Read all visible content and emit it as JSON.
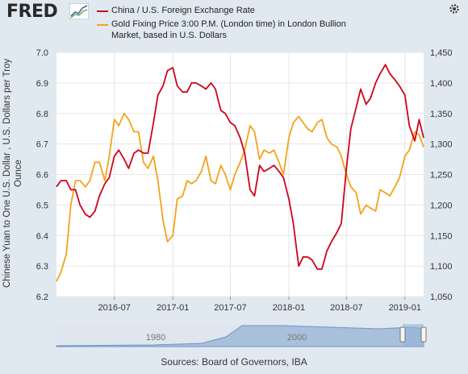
{
  "header": {
    "logo_text": "FRED",
    "logo_icon": "line-graph-icon",
    "settings_icon": "gear-icon"
  },
  "legend": [
    {
      "label": "China / U.S. Foreign Exchange Rate",
      "color": "#d0021b"
    },
    {
      "label_lines": [
        "Gold Fixing Price 3:00 P.M. (London time) in London Bullion",
        "Market, based in U.S. Dollars"
      ],
      "color": "#f5a21b"
    }
  ],
  "chart_data": {
    "type": "line",
    "x_tick_labels": [
      "2016-07",
      "2017-01",
      "2017-07",
      "2018-01",
      "2018-07",
      "2019-01"
    ],
    "left_axis": {
      "label": "Chinese Yuan to One U.S. Dollar , U.S. Dollars per Troy Ounce",
      "ticks": [
        "6.2",
        "6.3",
        "6.4",
        "6.5",
        "6.6",
        "6.7",
        "6.8",
        "6.9",
        "7.0"
      ],
      "ylim": [
        6.2,
        7.0
      ]
    },
    "right_axis": {
      "ticks": [
        "1,050",
        "1,100",
        "1,150",
        "1,200",
        "1,250",
        "1,300",
        "1,350",
        "1,400",
        "1,450"
      ],
      "ylim": [
        1050,
        1450
      ]
    },
    "xlim": [
      "2016-01-01",
      "2019-03-01"
    ],
    "grid": true,
    "series": [
      {
        "name": "China / U.S. Foreign Exchange Rate",
        "axis": "left",
        "color": "#d0021b",
        "points": [
          [
            "2016-01-01",
            6.56
          ],
          [
            "2016-01-15",
            6.58
          ],
          [
            "2016-02-01",
            6.58
          ],
          [
            "2016-02-15",
            6.55
          ],
          [
            "2016-03-01",
            6.55
          ],
          [
            "2016-03-15",
            6.5
          ],
          [
            "2016-04-01",
            6.47
          ],
          [
            "2016-04-15",
            6.46
          ],
          [
            "2016-05-01",
            6.48
          ],
          [
            "2016-05-15",
            6.53
          ],
          [
            "2016-06-01",
            6.57
          ],
          [
            "2016-06-15",
            6.59
          ],
          [
            "2016-07-01",
            6.66
          ],
          [
            "2016-07-15",
            6.68
          ],
          [
            "2016-08-01",
            6.65
          ],
          [
            "2016-08-15",
            6.62
          ],
          [
            "2016-09-01",
            6.67
          ],
          [
            "2016-09-15",
            6.68
          ],
          [
            "2016-10-01",
            6.67
          ],
          [
            "2016-10-15",
            6.67
          ],
          [
            "2016-11-01",
            6.77
          ],
          [
            "2016-11-15",
            6.86
          ],
          [
            "2016-12-01",
            6.89
          ],
          [
            "2016-12-15",
            6.94
          ],
          [
            "2017-01-01",
            6.95
          ],
          [
            "2017-01-15",
            6.89
          ],
          [
            "2017-02-01",
            6.87
          ],
          [
            "2017-02-15",
            6.87
          ],
          [
            "2017-03-01",
            6.9
          ],
          [
            "2017-03-15",
            6.9
          ],
          [
            "2017-04-01",
            6.89
          ],
          [
            "2017-04-15",
            6.88
          ],
          [
            "2017-05-01",
            6.9
          ],
          [
            "2017-05-15",
            6.88
          ],
          [
            "2017-06-01",
            6.81
          ],
          [
            "2017-06-15",
            6.8
          ],
          [
            "2017-07-01",
            6.77
          ],
          [
            "2017-07-15",
            6.76
          ],
          [
            "2017-08-01",
            6.72
          ],
          [
            "2017-08-15",
            6.67
          ],
          [
            "2017-09-01",
            6.55
          ],
          [
            "2017-09-15",
            6.53
          ],
          [
            "2017-10-01",
            6.63
          ],
          [
            "2017-10-15",
            6.61
          ],
          [
            "2017-11-01",
            6.62
          ],
          [
            "2017-11-15",
            6.63
          ],
          [
            "2017-12-01",
            6.61
          ],
          [
            "2017-12-15",
            6.59
          ],
          [
            "2018-01-01",
            6.52
          ],
          [
            "2018-01-15",
            6.44
          ],
          [
            "2018-02-01",
            6.3
          ],
          [
            "2018-02-15",
            6.33
          ],
          [
            "2018-03-01",
            6.33
          ],
          [
            "2018-03-15",
            6.32
          ],
          [
            "2018-04-01",
            6.29
          ],
          [
            "2018-04-15",
            6.29
          ],
          [
            "2018-05-01",
            6.35
          ],
          [
            "2018-05-15",
            6.38
          ],
          [
            "2018-06-01",
            6.41
          ],
          [
            "2018-06-15",
            6.44
          ],
          [
            "2018-07-01",
            6.62
          ],
          [
            "2018-07-15",
            6.75
          ],
          [
            "2018-08-01",
            6.82
          ],
          [
            "2018-08-15",
            6.88
          ],
          [
            "2018-09-01",
            6.83
          ],
          [
            "2018-09-15",
            6.85
          ],
          [
            "2018-10-01",
            6.9
          ],
          [
            "2018-10-15",
            6.93
          ],
          [
            "2018-11-01",
            6.96
          ],
          [
            "2018-11-15",
            6.93
          ],
          [
            "2018-12-01",
            6.91
          ],
          [
            "2018-12-15",
            6.89
          ],
          [
            "2019-01-01",
            6.86
          ],
          [
            "2019-01-15",
            6.76
          ],
          [
            "2019-02-01",
            6.71
          ],
          [
            "2019-02-15",
            6.78
          ],
          [
            "2019-03-01",
            6.72
          ]
        ]
      },
      {
        "name": "Gold Fixing Price 3:00 P.M. (London time) in London Bullion Market, based in U.S. Dollars",
        "axis": "right",
        "color": "#f5a21b",
        "points": [
          [
            "2016-01-01",
            1075
          ],
          [
            "2016-01-15",
            1090
          ],
          [
            "2016-02-01",
            1120
          ],
          [
            "2016-02-15",
            1200
          ],
          [
            "2016-03-01",
            1240
          ],
          [
            "2016-03-15",
            1240
          ],
          [
            "2016-04-01",
            1230
          ],
          [
            "2016-04-15",
            1240
          ],
          [
            "2016-05-01",
            1270
          ],
          [
            "2016-05-15",
            1270
          ],
          [
            "2016-06-01",
            1240
          ],
          [
            "2016-06-15",
            1280
          ],
          [
            "2016-07-01",
            1340
          ],
          [
            "2016-07-15",
            1330
          ],
          [
            "2016-08-01",
            1350
          ],
          [
            "2016-08-15",
            1340
          ],
          [
            "2016-09-01",
            1320
          ],
          [
            "2016-09-15",
            1320
          ],
          [
            "2016-10-01",
            1270
          ],
          [
            "2016-10-15",
            1260
          ],
          [
            "2016-11-01",
            1280
          ],
          [
            "2016-11-15",
            1240
          ],
          [
            "2016-12-01",
            1175
          ],
          [
            "2016-12-15",
            1140
          ],
          [
            "2017-01-01",
            1150
          ],
          [
            "2017-01-15",
            1210
          ],
          [
            "2017-02-01",
            1215
          ],
          [
            "2017-02-15",
            1240
          ],
          [
            "2017-03-01",
            1235
          ],
          [
            "2017-03-15",
            1240
          ],
          [
            "2017-04-01",
            1255
          ],
          [
            "2017-04-15",
            1280
          ],
          [
            "2017-05-01",
            1240
          ],
          [
            "2017-05-15",
            1235
          ],
          [
            "2017-06-01",
            1265
          ],
          [
            "2017-06-15",
            1250
          ],
          [
            "2017-07-01",
            1225
          ],
          [
            "2017-07-15",
            1250
          ],
          [
            "2017-08-01",
            1270
          ],
          [
            "2017-08-15",
            1290
          ],
          [
            "2017-09-01",
            1330
          ],
          [
            "2017-09-15",
            1320
          ],
          [
            "2017-10-01",
            1275
          ],
          [
            "2017-10-15",
            1290
          ],
          [
            "2017-11-01",
            1285
          ],
          [
            "2017-11-15",
            1290
          ],
          [
            "2017-12-01",
            1270
          ],
          [
            "2017-12-15",
            1250
          ],
          [
            "2018-01-01",
            1310
          ],
          [
            "2018-01-15",
            1335
          ],
          [
            "2018-02-01",
            1345
          ],
          [
            "2018-02-15",
            1335
          ],
          [
            "2018-03-01",
            1325
          ],
          [
            "2018-03-15",
            1320
          ],
          [
            "2018-04-01",
            1335
          ],
          [
            "2018-04-15",
            1340
          ],
          [
            "2018-05-01",
            1310
          ],
          [
            "2018-05-15",
            1300
          ],
          [
            "2018-06-01",
            1295
          ],
          [
            "2018-06-15",
            1280
          ],
          [
            "2018-07-01",
            1250
          ],
          [
            "2018-07-15",
            1230
          ],
          [
            "2018-08-01",
            1220
          ],
          [
            "2018-08-15",
            1185
          ],
          [
            "2018-09-01",
            1200
          ],
          [
            "2018-09-15",
            1195
          ],
          [
            "2018-10-01",
            1190
          ],
          [
            "2018-10-15",
            1225
          ],
          [
            "2018-11-01",
            1220
          ],
          [
            "2018-11-15",
            1215
          ],
          [
            "2018-12-01",
            1230
          ],
          [
            "2018-12-15",
            1245
          ],
          [
            "2019-01-01",
            1280
          ],
          [
            "2019-01-15",
            1290
          ],
          [
            "2019-02-01",
            1320
          ],
          [
            "2019-02-15",
            1315
          ],
          [
            "2019-03-01",
            1295
          ]
        ]
      }
    ]
  },
  "navigator": {
    "labels": [
      "1980",
      "2000"
    ]
  },
  "footer": {
    "sources": "Sources: Board of Governors, IBA"
  }
}
